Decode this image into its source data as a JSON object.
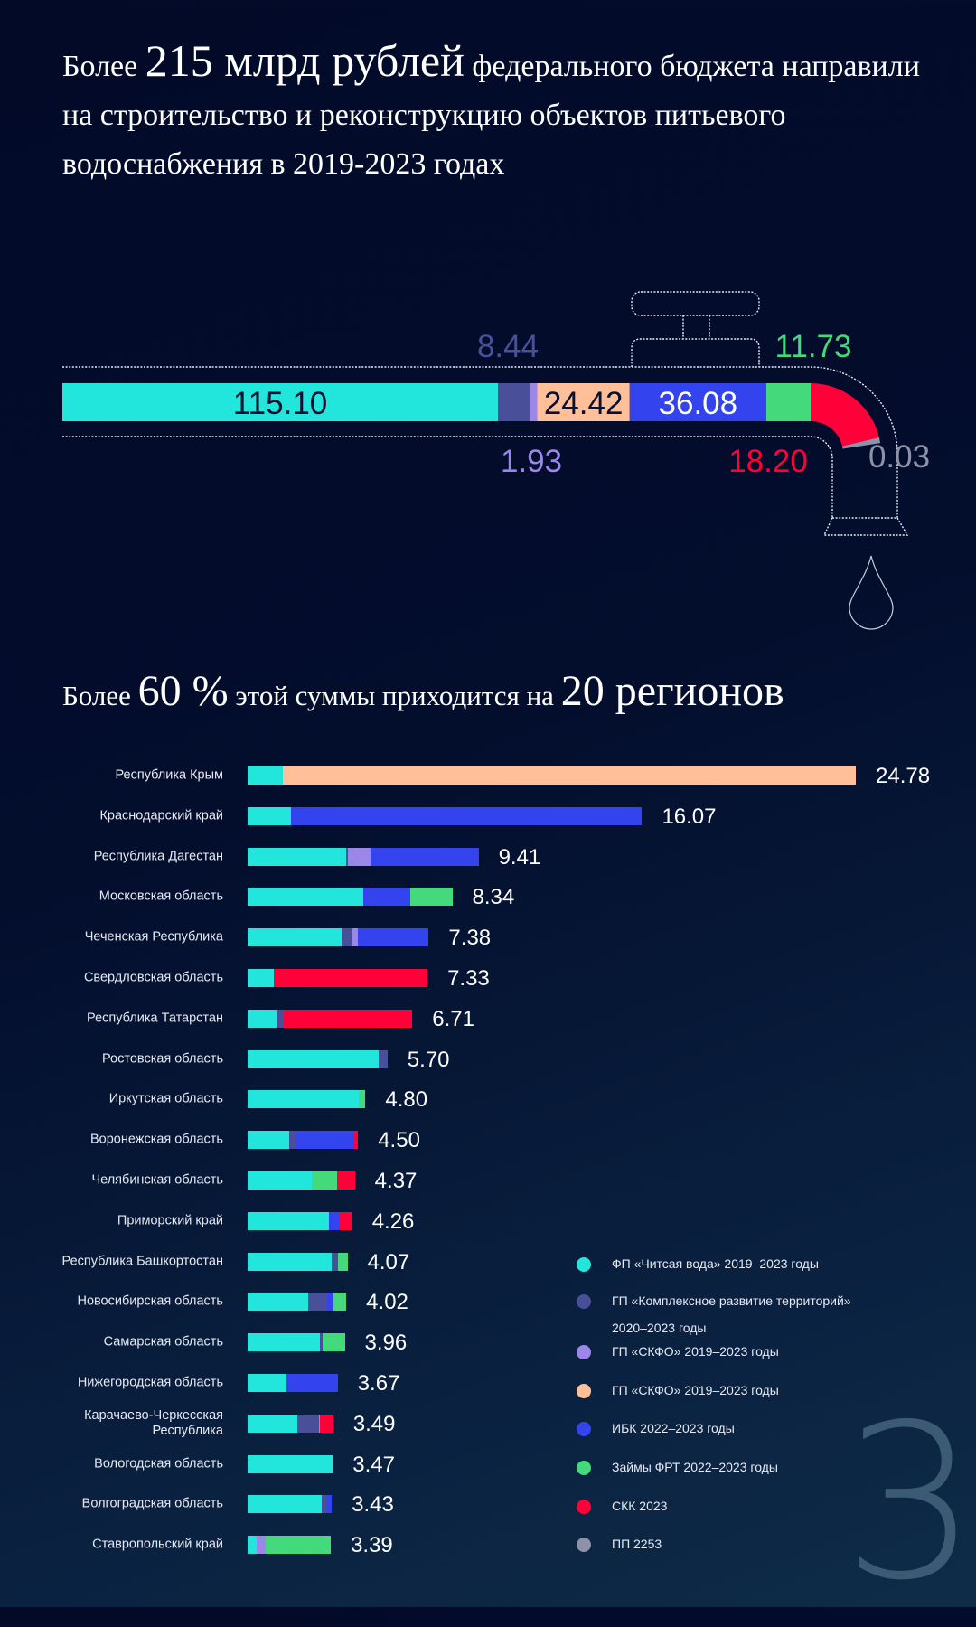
{
  "title": {
    "prefix": "Более",
    "highlight": "215 млрд рублей",
    "rest": "федерального бюджета направили на строительство и реконструкцию объектов питьевого водоснабжения в 2019-2023 годах"
  },
  "subtitle": {
    "p1": "Более",
    "h1": "60 %",
    "p2": "этой суммы приходится на",
    "h2": "20 регионов"
  },
  "colors": {
    "fp": "#22e6dc",
    "kr": "#4a4f9a",
    "skfo_lav": "#9b87e8",
    "skfo_peach": "#ffbf99",
    "ibk": "#3344ee",
    "frt": "#44d97a",
    "skk": "#ff0039",
    "pp": "#8d92a8",
    "background": "#020a28"
  },
  "page_number": "3",
  "chart_data": [
    {
      "type": "bar",
      "orientation": "horizontal-stacked",
      "description_shape": "tap",
      "segments": [
        {
          "key": "fp",
          "label": "115.10",
          "value": 115.1
        },
        {
          "key": "kr",
          "label": "8.44",
          "value": 8.44
        },
        {
          "key": "skfo_lav",
          "label": "1.93",
          "value": 1.93
        },
        {
          "key": "skfo_peach",
          "label": "24.42",
          "value": 24.42
        },
        {
          "key": "ibk",
          "label": "36.08",
          "value": 36.08
        },
        {
          "key": "frt",
          "label": "11.73",
          "value": 11.73
        },
        {
          "key": "skk",
          "label": "18.20",
          "value": 18.2
        },
        {
          "key": "pp",
          "label": "0.03",
          "value": 0.03
        }
      ]
    },
    {
      "type": "bar",
      "orientation": "horizontal-stacked",
      "categories": [
        "Республика Крым",
        "Краснодарский край",
        "Республика Дагестан",
        "Московская область",
        "Чеченская Республика",
        "Свердловская область",
        "Республика Татарстан",
        "Ростовская область",
        "Иркутская область",
        "Воронежская область",
        "Челябинская область",
        "Приморский край",
        "Республика Башкортостан",
        "Новосибирская область",
        "Самарская область",
        "Нижегородская область",
        "Карачаево-Черкесская Республика",
        "Вологодская область",
        "Волгоградская область",
        "Ставропольский край"
      ],
      "totals": [
        "24.78",
        "16.07",
        "9.41",
        "8.34",
        "7.38",
        "7.33",
        "6.71",
        "5.70",
        "4.80",
        "4.50",
        "4.37",
        "4.26",
        "4.07",
        "4.02",
        "3.96",
        "3.67",
        "3.49",
        "3.47",
        "3.43",
        "3.39"
      ],
      "series": [
        {
          "key": "fp",
          "name": "ФП «Читсая вода» 2019–2023 годы",
          "values": [
            1.43,
            1.76,
            4.0,
            4.73,
            3.84,
            1.08,
            1.16,
            5.35,
            4.53,
            1.69,
            2.61,
            3.3,
            3.42,
            2.46,
            2.95,
            1.57,
            2.03,
            3.47,
            3.02,
            0.35
          ]
        },
        {
          "key": "kr",
          "name": "ГП «Комплексное развитие территорий» 2020–2023 годы",
          "values": [
            0,
            0,
            0.08,
            0,
            0.42,
            0,
            0.3,
            0.35,
            0,
            0.27,
            0,
            0,
            0.27,
            0.77,
            0.12,
            0,
            0.87,
            0,
            0.23,
            0
          ]
        },
        {
          "key": "skfo_lav",
          "name": "ГП «СКФО» 2019–2023 годы",
          "values": [
            0,
            0,
            0.92,
            0,
            0.23,
            0,
            0,
            0,
            0,
            0,
            0,
            0,
            0,
            0,
            0,
            0,
            0.05,
            0,
            0,
            0.39
          ]
        },
        {
          "key": "skfo_peach",
          "name": "ГП «СКФО» 2019–2023 годы",
          "values": [
            23.35,
            0,
            0,
            0,
            0,
            0,
            0,
            0,
            0,
            0,
            0,
            0,
            0,
            0,
            0,
            0,
            0,
            0,
            0,
            0
          ]
        },
        {
          "key": "ibk",
          "name": "ИБК 2022–2023 годы",
          "values": [
            0,
            14.31,
            4.41,
            1.88,
            2.89,
            0,
            0,
            0,
            0,
            2.39,
            0,
            0.42,
            0,
            0.28,
            0,
            2.1,
            0,
            0,
            0.18,
            0
          ]
        },
        {
          "key": "frt",
          "name": "Займы ФРТ 2022–2023 годы",
          "values": [
            0,
            0,
            0,
            1.73,
            0,
            0,
            0,
            0,
            0.27,
            0,
            1.04,
            0,
            0.38,
            0.51,
            0.89,
            0,
            0,
            0,
            0,
            2.65
          ]
        },
        {
          "key": "skk",
          "name": "СКК 2023",
          "values": [
            0,
            0,
            0,
            0,
            0,
            6.25,
            5.25,
            0,
            0,
            0.15,
            0.72,
            0.54,
            0,
            0,
            0,
            0,
            0.54,
            0,
            0,
            0
          ]
        },
        {
          "key": "pp",
          "name": "ПП 2253",
          "values": [
            0,
            0,
            0,
            0,
            0,
            0,
            0,
            0,
            0,
            0,
            0,
            0,
            0,
            0,
            0,
            0,
            0,
            0,
            0,
            0
          ]
        }
      ],
      "legend": {
        "placement": "bottom-right",
        "items": [
          {
            "key": "fp",
            "text": "ФП «Читсая вода» 2019–2023 годы"
          },
          {
            "key": "kr",
            "text": "ГП «Комплексное развитие территорий»",
            "text2": "2020–2023 годы"
          },
          {
            "key": "skfo_lav",
            "text": "ГП «СКФО» 2019–2023 годы"
          },
          {
            "key": "skfo_peach",
            "text": "ГП «СКФО» 2019–2023 годы"
          },
          {
            "key": "ibk",
            "text": "ИБК 2022–2023 годы"
          },
          {
            "key": "frt",
            "text": "Займы ФРТ 2022–2023 годы"
          },
          {
            "key": "skk",
            "text": "СКК 2023"
          },
          {
            "key": "pp",
            "text": "ПП 2253"
          }
        ]
      },
      "grid": false
    }
  ]
}
